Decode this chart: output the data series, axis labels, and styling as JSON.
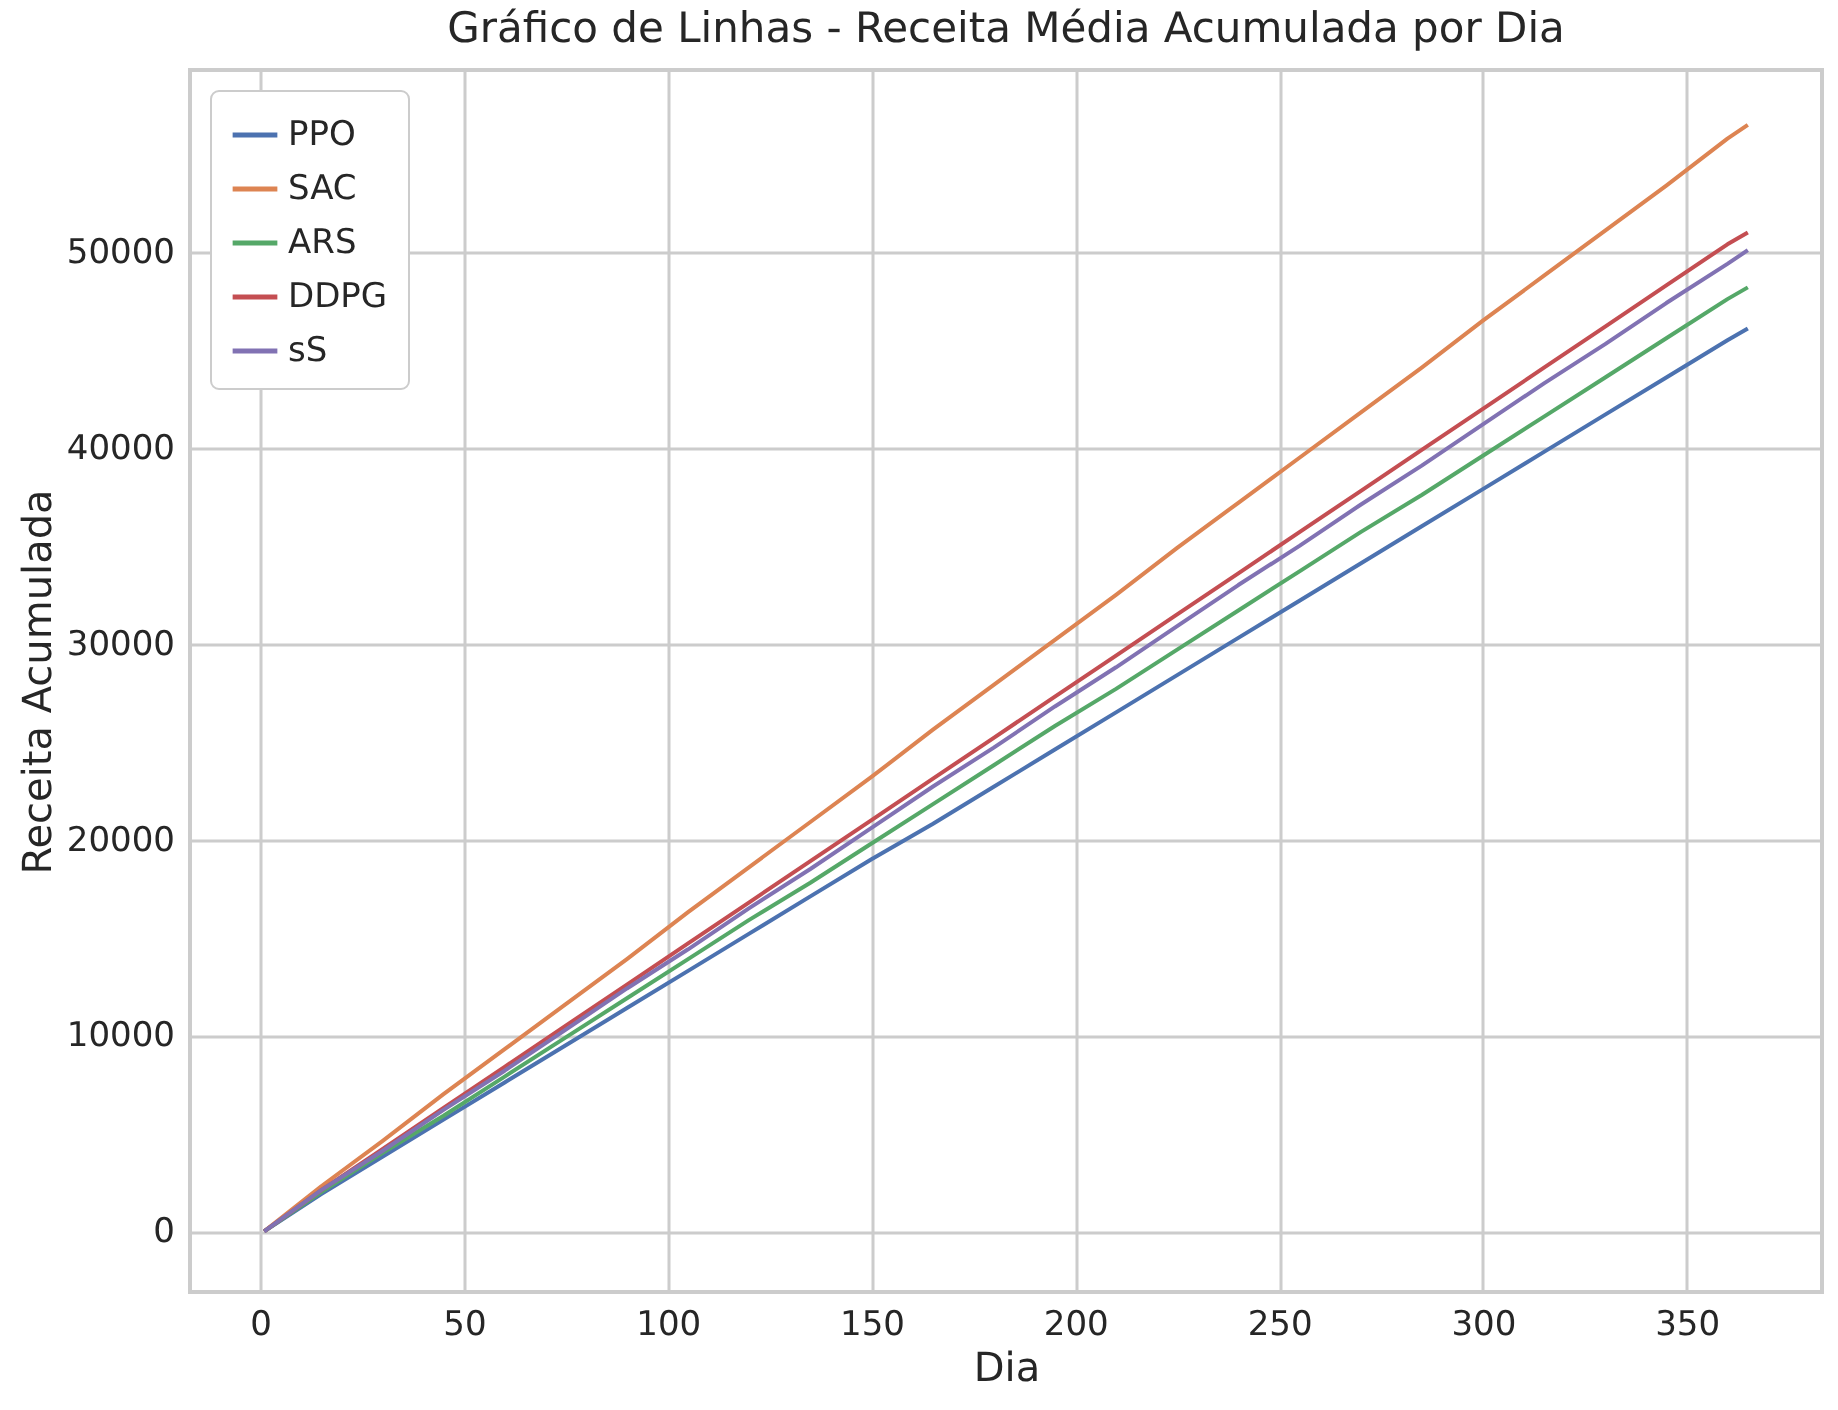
{
  "chart_data": {
    "type": "line",
    "title": "Gráfico de Linhas - Receita Média Acumulada por Dia",
    "xlabel": "Dia",
    "ylabel": "Receita Acumulada",
    "x": [
      1,
      15,
      30,
      45,
      60,
      75,
      90,
      105,
      120,
      135,
      150,
      165,
      180,
      195,
      210,
      225,
      240,
      255,
      270,
      285,
      300,
      315,
      330,
      345,
      360,
      365
    ],
    "series": [
      {
        "name": "PPO",
        "color": "#4c72b0",
        "values": [
          0,
          1900,
          3800,
          5700,
          7600,
          9500,
          11400,
          13300,
          15200,
          17100,
          19000,
          20800,
          22700,
          24600,
          26500,
          28400,
          30300,
          32200,
          34100,
          36000,
          37900,
          39800,
          41700,
          43600,
          45500,
          46100
        ]
      },
      {
        "name": "SAC",
        "color": "#dd8452",
        "values": [
          0,
          2300,
          4600,
          7000,
          9300,
          11600,
          13900,
          16300,
          18600,
          20900,
          23200,
          25600,
          27900,
          30200,
          32500,
          34900,
          37200,
          39500,
          41800,
          44100,
          46500,
          48800,
          51100,
          53400,
          55800,
          56500
        ]
      },
      {
        "name": "ARS",
        "color": "#55a868",
        "values": [
          0,
          2000,
          4000,
          5900,
          7900,
          9900,
          11900,
          13900,
          15900,
          17800,
          19800,
          21800,
          23800,
          25800,
          27700,
          29700,
          31700,
          33700,
          35700,
          37600,
          39600,
          41600,
          43600,
          45600,
          47600,
          48200
        ]
      },
      {
        "name": "DDPG",
        "color": "#c44e52",
        "values": [
          0,
          2100,
          4200,
          6300,
          8400,
          10500,
          12600,
          14700,
          16800,
          18900,
          21000,
          23100,
          25200,
          27300,
          29400,
          31500,
          33600,
          35700,
          37800,
          39900,
          42000,
          44100,
          46200,
          48300,
          50400,
          51000
        ]
      },
      {
        "name": "sS",
        "color": "#8172b3",
        "values": [
          0,
          2100,
          4100,
          6200,
          8200,
          10300,
          12400,
          14400,
          16500,
          18500,
          20600,
          22700,
          24700,
          26800,
          28800,
          30900,
          33000,
          35000,
          37100,
          39100,
          41200,
          43300,
          45300,
          47400,
          49400,
          50100
        ]
      }
    ],
    "xlim": [
      -17.2,
      383.2
    ],
    "ylim": [
      -3100,
      59300
    ],
    "xticks": [
      0,
      50,
      100,
      150,
      200,
      250,
      300,
      350
    ],
    "yticks": [
      0,
      10000,
      20000,
      30000,
      40000,
      50000
    ],
    "grid": true,
    "legend": "top left",
    "line_style": "solid",
    "marker": "none"
  }
}
